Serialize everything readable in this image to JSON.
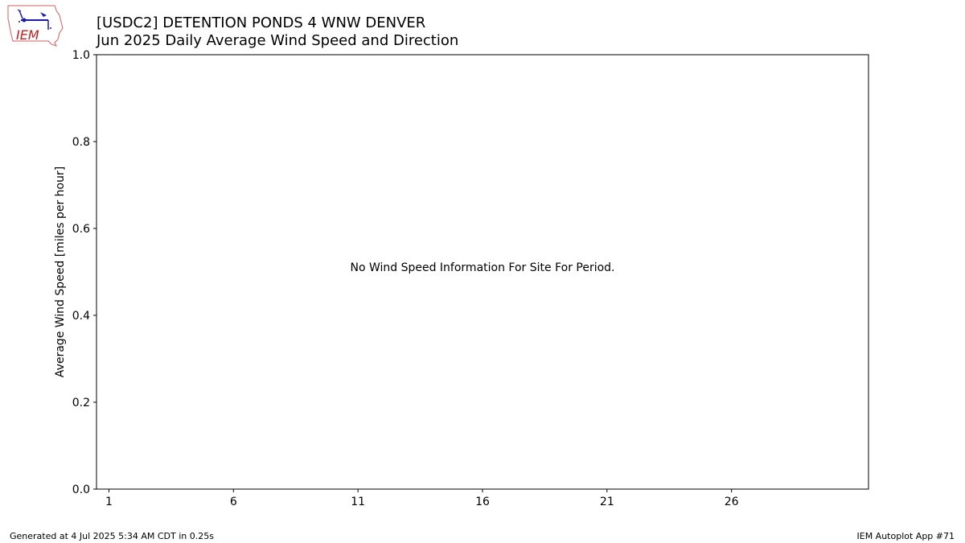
{
  "header": {
    "title_line1": "[USDC2] DETENTION PONDS 4 WNW DENVER",
    "title_line2": "Jun 2025 Daily Average Wind Speed and Direction"
  },
  "logo": {
    "text": "IEM",
    "icon": "iem-logo-icon"
  },
  "chart_data": {
    "type": "bar",
    "ylabel": "Average Wind Speed [miles per hour]",
    "xlabel": "",
    "ylim": [
      0.0,
      1.0
    ],
    "xlim": [
      0.5,
      31.5
    ],
    "yticks": [
      "0.0",
      "0.2",
      "0.4",
      "0.6",
      "0.8",
      "1.0"
    ],
    "xticks": [
      "1",
      "6",
      "11",
      "16",
      "21",
      "26"
    ],
    "annotation": "No Wind Speed Information For Site For Period.",
    "values": []
  },
  "footer": {
    "generated": "Generated at 4 Jul 2025 5:34 AM CDT in 0.25s",
    "app": "IEM Autoplot App #71"
  }
}
